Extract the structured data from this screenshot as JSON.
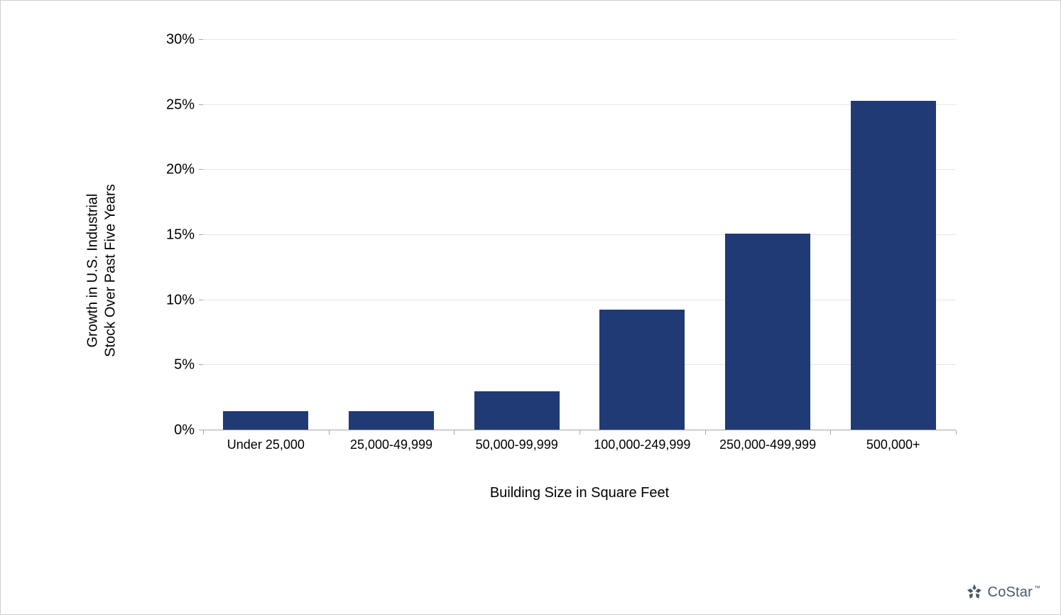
{
  "chart": {
    "type": "bar",
    "y_axis_title_line1": "Growth in U.S. Industrial",
    "y_axis_title_line2": "Stock Over Past Five Years",
    "x_axis_title": "Building Size in Square Feet",
    "categories": [
      "Under 25,000",
      "25,000-49,999",
      "50,000-99,999",
      "100,000-249,999",
      "250,000-499,999",
      "500,000+"
    ],
    "values": [
      1.5,
      1.5,
      3.0,
      9.3,
      15.1,
      25.3
    ],
    "bar_color": "#1f3a75",
    "ymin": 0,
    "ymax": 30,
    "ytick_step": 5,
    "ytick_labels": [
      "0%",
      "5%",
      "10%",
      "15%",
      "20%",
      "25%",
      "30%"
    ],
    "grid_color": "#e6e6e6",
    "axis_line_color": "#a6a6a6",
    "background_color": "#ffffff",
    "label_fontsize": 20,
    "tick_fontsize": 20,
    "x_tick_fontsize": 18,
    "bar_width_ratio": 0.68
  },
  "branding": {
    "logo_text": "CoStar",
    "logo_color": "#4a5a6a",
    "tm": "™"
  }
}
